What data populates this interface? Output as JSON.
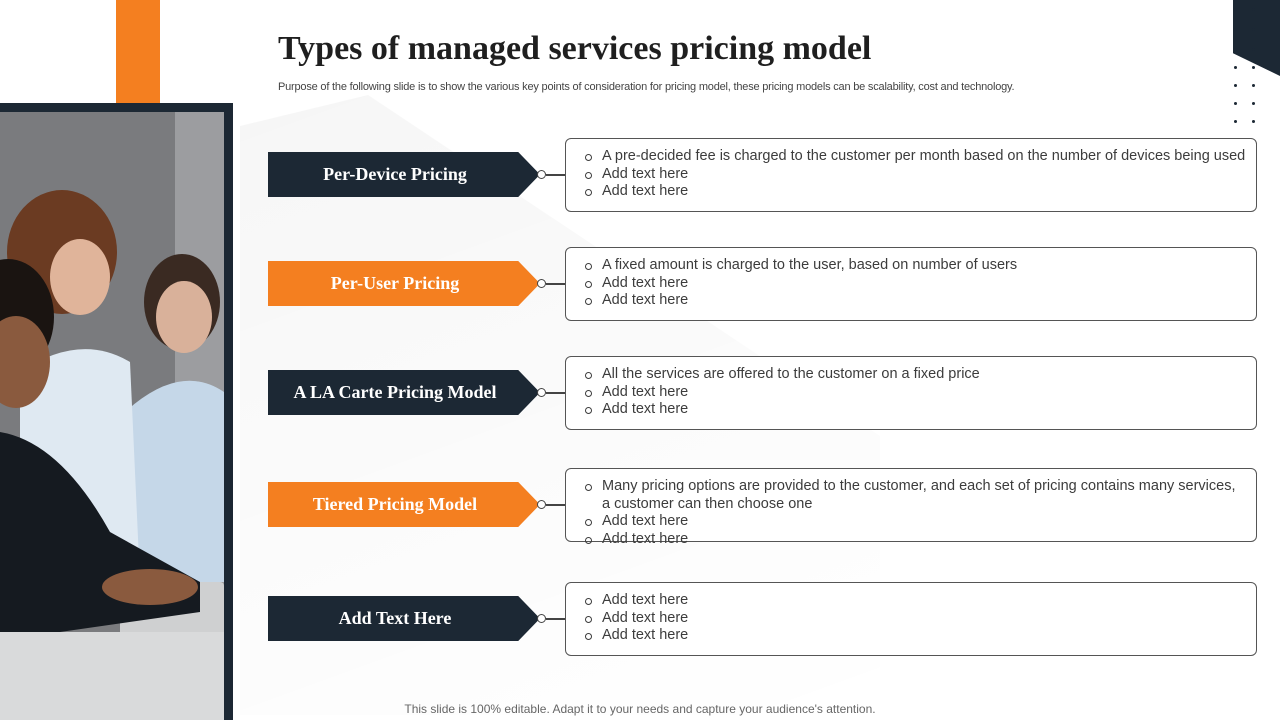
{
  "title": "Types of managed services pricing model",
  "subtitle": "Purpose of the following slide is to show the various key points of consideration for pricing model, these pricing models can be scalability, cost and technology.",
  "colors": {
    "dark": "#1c2834",
    "accent": "#f47f20"
  },
  "rows": [
    {
      "label": "Per-Device Pricing",
      "style": "dark",
      "bullets": [
        "A pre-decided fee is charged to the customer per month based on the number of devices being used",
        "Add text here",
        "Add text here"
      ]
    },
    {
      "label": "Per-User Pricing",
      "style": "orange",
      "bullets": [
        "A fixed amount is charged to the user, based on number of users",
        "Add text here",
        "Add text here"
      ]
    },
    {
      "label": "A LA Carte Pricing Model",
      "style": "dark",
      "bullets": [
        "All the services are offered to the customer on a fixed price",
        "Add text here",
        "Add text here"
      ]
    },
    {
      "label": "Tiered Pricing Model",
      "style": "orange",
      "bullets": [
        "Many pricing options are provided to the customer, and each set of pricing contains many services, a customer can then choose one",
        "Add text here",
        "Add text here"
      ]
    },
    {
      "label": "Add Text Here",
      "style": "dark",
      "bullets": [
        "Add text here",
        "Add text here",
        "Add text here"
      ]
    }
  ],
  "footer": "This slide is 100% editable. Adapt it to your needs and capture your audience's attention."
}
